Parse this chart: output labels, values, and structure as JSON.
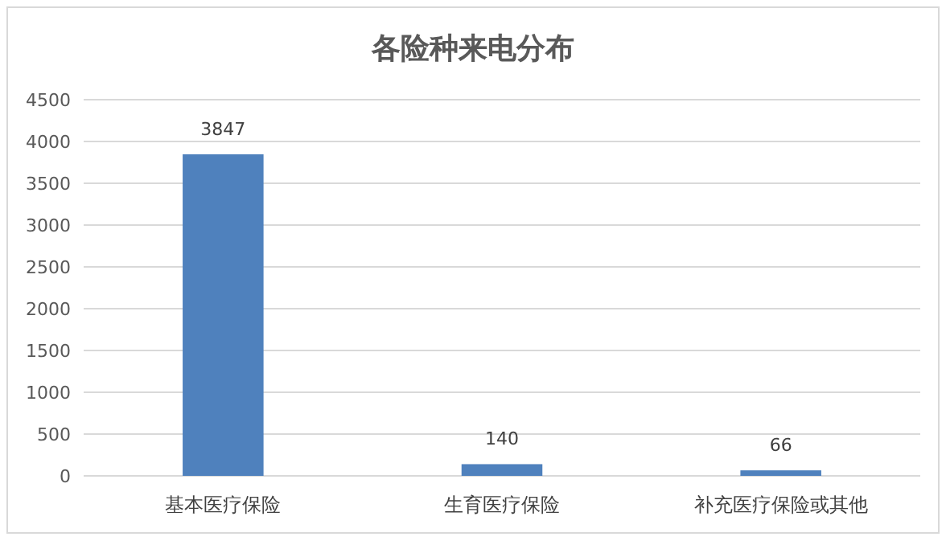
{
  "chart_data": {
    "type": "bar",
    "title": "各险种来电分布",
    "categories": [
      "基本医疗保险",
      "生育医疗保险",
      "补充医疗保险或其他"
    ],
    "values": [
      3847,
      140,
      66
    ],
    "color": "#4f81bd",
    "ylim": [
      0,
      4500
    ],
    "yticks": [
      0,
      500,
      1000,
      1500,
      2000,
      2500,
      3000,
      3500,
      4000,
      4500
    ],
    "grid": "y",
    "data_labels": true
  }
}
